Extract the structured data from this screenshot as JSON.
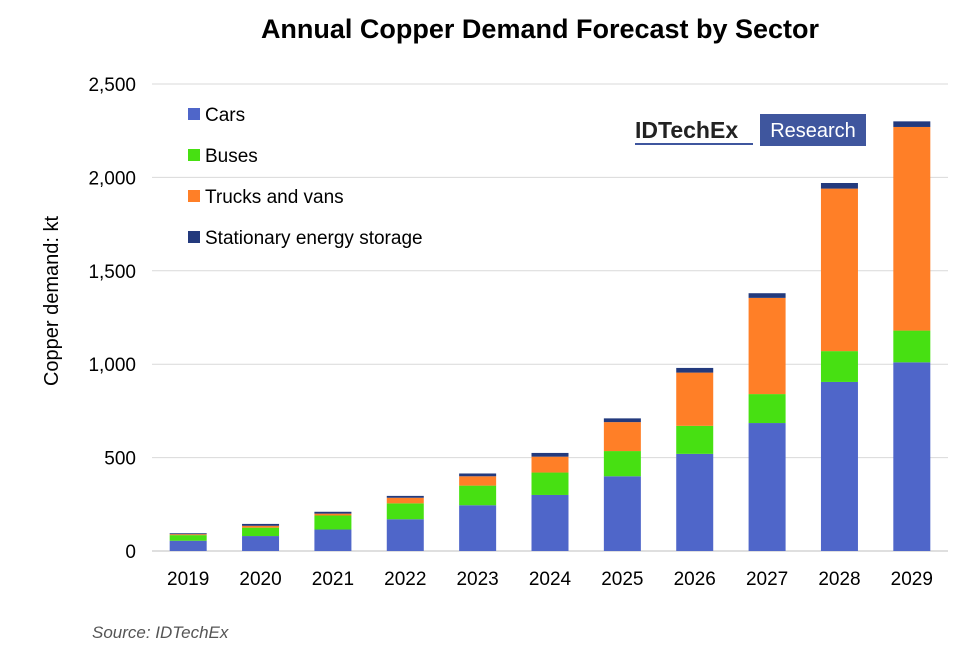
{
  "chart_data": {
    "type": "bar",
    "stacked": true,
    "title": "Annual Copper Demand Forecast by Sector",
    "xlabel": "",
    "ylabel": "Copper demand: kt",
    "ylim": [
      0,
      2500
    ],
    "yticks": [
      "0",
      "500",
      "1,000",
      "1,500",
      "2,000",
      "2,500"
    ],
    "ytick_values": [
      0,
      500,
      1000,
      1500,
      2000,
      2500
    ],
    "grid": true,
    "legend_position": "top-left",
    "categories": [
      "2019",
      "2020",
      "2021",
      "2022",
      "2023",
      "2024",
      "2025",
      "2026",
      "2027",
      "2028",
      "2029"
    ],
    "series": [
      {
        "name": "Cars",
        "color": "#4F66C9",
        "values": [
          55,
          80,
          115,
          170,
          245,
          300,
          400,
          520,
          685,
          905,
          1010
        ]
      },
      {
        "name": "Buses",
        "color": "#47E012",
        "values": [
          30,
          45,
          75,
          85,
          105,
          120,
          135,
          150,
          155,
          165,
          170
        ]
      },
      {
        "name": "Trucks and vans",
        "color": "#FF7F27",
        "values": [
          5,
          10,
          10,
          30,
          50,
          85,
          155,
          285,
          515,
          870,
          1090
        ]
      },
      {
        "name": "Stationary energy storage",
        "color": "#233A7D",
        "values": [
          5,
          10,
          10,
          10,
          15,
          20,
          20,
          25,
          25,
          30,
          30
        ]
      }
    ],
    "source": "Source: IDTechEx"
  },
  "logo": {
    "left": "IDTechEx",
    "right": "Research",
    "colors": {
      "left_text": "#222222",
      "right_bg": "#3F569E",
      "underline": "#3F569E"
    }
  }
}
